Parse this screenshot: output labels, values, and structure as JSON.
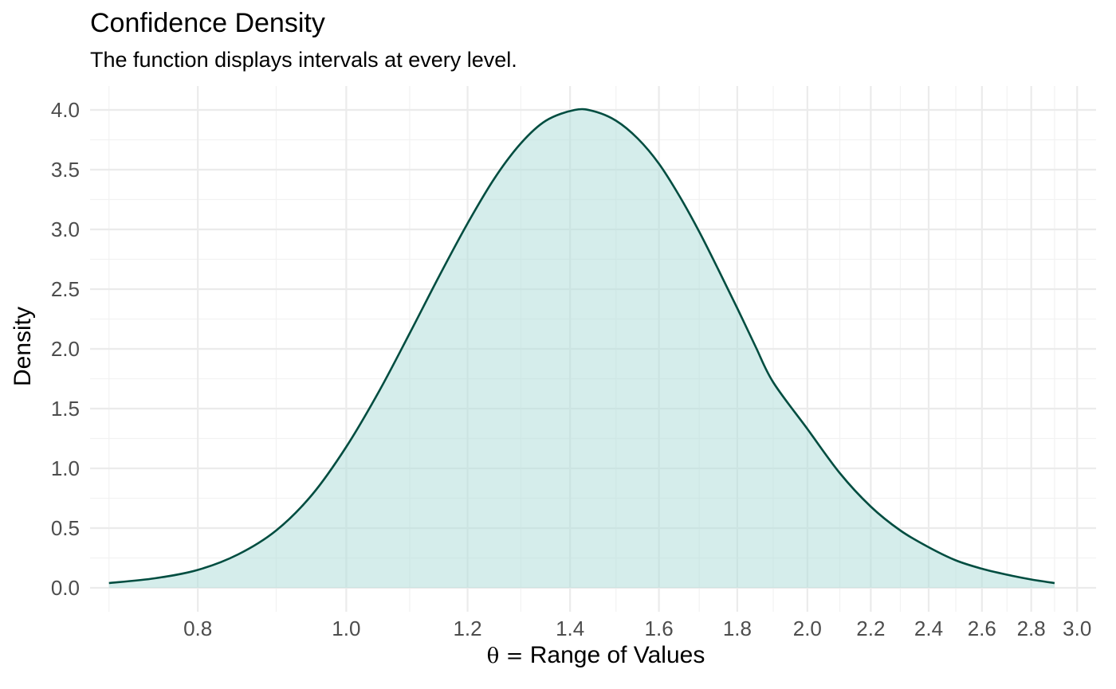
{
  "chart_data": {
    "type": "area",
    "title": "Confidence Density",
    "subtitle": "The function displays intervals at every level.",
    "xlabel_symbol": "θ =",
    "xlabel": "Range of Values",
    "ylabel": "Density",
    "x_scale": "log",
    "xlim": [
      0.7,
      2.9
    ],
    "ylim": [
      0,
      4.0
    ],
    "x_ticks": [
      0.8,
      1.0,
      1.2,
      1.4,
      1.6,
      1.8,
      2.0,
      2.2,
      2.4,
      2.6,
      2.8,
      3.0
    ],
    "x_tick_labels": [
      "0.8",
      "1.0",
      "1.2",
      "1.4",
      "1.6",
      "1.8",
      "2.0",
      "2.2",
      "2.4",
      "2.6",
      "2.8",
      "3.0"
    ],
    "x_minor_ticks": [
      0.7,
      0.9,
      1.1,
      1.3,
      1.5,
      1.7,
      1.9,
      2.1,
      2.3,
      2.5,
      2.7,
      2.9
    ],
    "y_ticks": [
      0,
      0.5,
      1.0,
      1.5,
      2.0,
      2.5,
      3.0,
      3.5,
      4.0
    ],
    "y_tick_labels": [
      "0.0",
      "0.5",
      "1.0",
      "1.5",
      "2.0",
      "2.5",
      "3.0",
      "3.5",
      "4.0"
    ],
    "grid": true,
    "line_color": "#004d40",
    "fill_color": "#b2dfdb",
    "fill_opacity": 0.55,
    "points": [
      {
        "x": 0.7,
        "y": 0.04
      },
      {
        "x": 0.75,
        "y": 0.08
      },
      {
        "x": 0.8,
        "y": 0.15
      },
      {
        "x": 0.85,
        "y": 0.28
      },
      {
        "x": 0.9,
        "y": 0.48
      },
      {
        "x": 0.95,
        "y": 0.78
      },
      {
        "x": 1.0,
        "y": 1.18
      },
      {
        "x": 1.05,
        "y": 1.64
      },
      {
        "x": 1.1,
        "y": 2.13
      },
      {
        "x": 1.15,
        "y": 2.61
      },
      {
        "x": 1.2,
        "y": 3.05
      },
      {
        "x": 1.25,
        "y": 3.43
      },
      {
        "x": 1.3,
        "y": 3.72
      },
      {
        "x": 1.35,
        "y": 3.91
      },
      {
        "x": 1.41,
        "y": 4.0
      },
      {
        "x": 1.45,
        "y": 3.99
      },
      {
        "x": 1.5,
        "y": 3.91
      },
      {
        "x": 1.55,
        "y": 3.76
      },
      {
        "x": 1.6,
        "y": 3.55
      },
      {
        "x": 1.65,
        "y": 3.28
      },
      {
        "x": 1.7,
        "y": 2.98
      },
      {
        "x": 1.75,
        "y": 2.66
      },
      {
        "x": 1.8,
        "y": 2.34
      },
      {
        "x": 1.85,
        "y": 2.02
      },
      {
        "x": 1.9,
        "y": 1.72
      },
      {
        "x": 2.0,
        "y": 1.33
      },
      {
        "x": 2.1,
        "y": 0.96
      },
      {
        "x": 2.2,
        "y": 0.68
      },
      {
        "x": 2.3,
        "y": 0.48
      },
      {
        "x": 2.4,
        "y": 0.34
      },
      {
        "x": 2.5,
        "y": 0.23
      },
      {
        "x": 2.6,
        "y": 0.16
      },
      {
        "x": 2.7,
        "y": 0.11
      },
      {
        "x": 2.8,
        "y": 0.07
      },
      {
        "x": 2.9,
        "y": 0.04
      }
    ]
  }
}
